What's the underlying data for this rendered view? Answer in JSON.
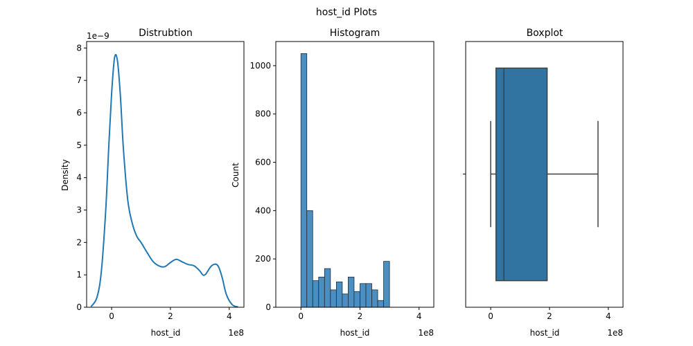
{
  "suptitle": "host_id Plots",
  "colors": {
    "kde_line": "#1f77b4",
    "hist_fill": "#4b8fc2",
    "hist_edge": "#1f2a35",
    "box_fill": "#3274a1",
    "box_line": "#3f3f3f",
    "axes": "#000000"
  },
  "chart_data": [
    {
      "type": "line",
      "title": "Distrubtion",
      "xlabel": "host_id",
      "ylabel": "Density",
      "x_offset_label": "1e8",
      "y_offset_label": "1e−9",
      "xlim": [
        -0.85,
        4.5
      ],
      "ylim": [
        0,
        8.2
      ],
      "x_ticks": [
        0,
        2,
        4
      ],
      "x_tick_labels": [
        "0",
        "2",
        "4"
      ],
      "y_ticks": [
        0,
        1,
        2,
        3,
        4,
        5,
        6,
        7,
        8
      ],
      "y_tick_labels": [
        "0",
        "1",
        "2",
        "3",
        "4",
        "5",
        "6",
        "7",
        "8"
      ],
      "series": [
        {
          "x": [
            -0.7,
            -0.5,
            -0.35,
            -0.2,
            -0.1,
            0.0,
            0.1,
            0.2,
            0.3,
            0.4,
            0.55,
            0.7,
            0.85,
            1.0,
            1.2,
            1.4,
            1.6,
            1.8,
            2.0,
            2.2,
            2.4,
            2.6,
            2.8,
            3.0,
            3.1,
            3.2,
            3.4,
            3.6,
            3.75,
            3.9,
            4.1,
            4.3
          ],
          "y": [
            0.02,
            0.3,
            1.1,
            3.0,
            4.9,
            6.6,
            7.7,
            7.6,
            6.5,
            4.9,
            3.3,
            2.6,
            2.2,
            2.0,
            1.7,
            1.42,
            1.28,
            1.25,
            1.38,
            1.48,
            1.4,
            1.32,
            1.28,
            1.12,
            1.0,
            1.02,
            1.28,
            1.3,
            0.95,
            0.4,
            0.08,
            0.01
          ]
        }
      ]
    },
    {
      "type": "bar",
      "title": "Histogram",
      "xlabel": "host_id",
      "ylabel": "Count",
      "x_offset_label": "1e8",
      "xlim": [
        -0.85,
        4.5
      ],
      "ylim": [
        0,
        1100
      ],
      "x_ticks": [
        0,
        2,
        4
      ],
      "x_tick_labels": [
        "0",
        "2",
        "4"
      ],
      "y_ticks": [
        0,
        200,
        400,
        600,
        800,
        1000
      ],
      "y_tick_labels": [
        "0",
        "200",
        "400",
        "600",
        "800",
        "1000"
      ],
      "bin_edges": [
        0.0,
        0.2,
        0.4,
        0.6,
        0.8,
        1.0,
        1.2,
        1.4,
        1.6,
        1.8,
        2.0,
        2.2,
        2.4,
        2.6,
        2.8,
        3.0,
        3.2,
        3.4,
        3.6
      ],
      "values": [
        1050,
        400,
        110,
        125,
        160,
        72,
        105,
        55,
        125,
        65,
        98,
        98,
        72,
        28,
        190,
        0,
        0,
        0
      ]
    },
    {
      "type": "box",
      "title": "Boxplot",
      "xlabel": "host_id",
      "x_offset_label": "1e8",
      "xlim": [
        -0.85,
        4.5
      ],
      "x_ticks": [
        0,
        2,
        4
      ],
      "x_tick_labels": [
        "0",
        "2",
        "4"
      ],
      "whisker_low": 0.0,
      "q1": 0.18,
      "median": 0.45,
      "q3": 1.92,
      "whisker_high": 3.65
    }
  ]
}
